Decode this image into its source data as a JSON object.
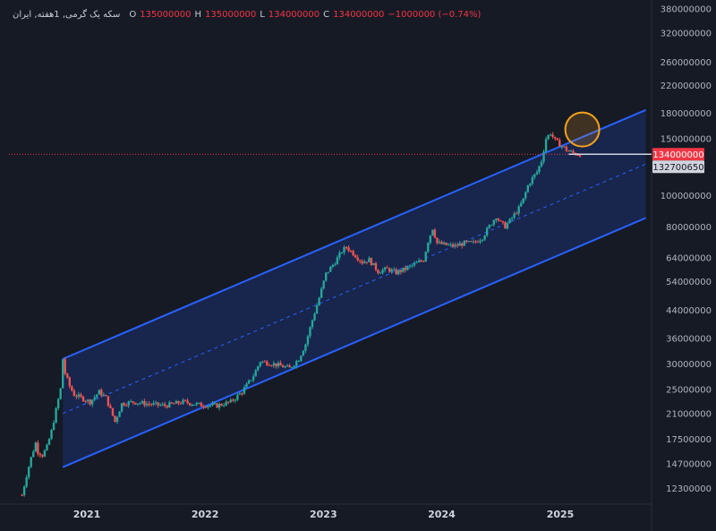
{
  "legend": {
    "symbol": "سکه یک گرمی, 1هفته, ایران",
    "o_label": "O",
    "o_value": "135000000",
    "h_label": "H",
    "h_value": "135000000",
    "l_label": "L",
    "l_value": "134000000",
    "c_label": "C",
    "c_value": "134000000",
    "change": "−1000000 (−0.74%)"
  },
  "colors": {
    "background": "#161a25",
    "up": "#26a69a",
    "down": "#ef5350",
    "channel_line": "#2962ff",
    "channel_fill": "#1c2f6e",
    "highlight_circle": "#f7a21b",
    "last_price_bg": "#f23645",
    "ref_price_bg": "#d1d4dc"
  },
  "chart_data": {
    "type": "candlestick",
    "scale": "log",
    "y_ticks": [
      "380000000",
      "320000000",
      "260000000",
      "220000000",
      "180000000",
      "150000000",
      "100000000",
      "80000000",
      "64000000",
      "54000000",
      "44000000",
      "36000000",
      "30000000",
      "25000000",
      "21000000",
      "17500000",
      "14700000",
      "12300000"
    ],
    "x_ticks": [
      "2021",
      "2022",
      "2023",
      "2024",
      "2025"
    ],
    "ylim": [
      11000000,
      400000000
    ],
    "last_price": "134000000",
    "ref_price": "132700650",
    "channel": {
      "upper": [
        [
          "2020-10-19",
          31000000
        ],
        [
          "2025-09-22",
          184000000
        ]
      ],
      "middle": [
        [
          "2020-10-19",
          21000000
        ],
        [
          "2025-09-22",
          125000000
        ]
      ],
      "lower": [
        [
          "2020-10-19",
          14300000
        ],
        [
          "2025-09-22",
          85000000
        ]
      ]
    },
    "highlight": {
      "date": "2025-03-10",
      "value": 160000000
    },
    "close_path": [
      [
        "2020-06-15",
        11700000
      ],
      [
        "2020-06-29",
        13500000
      ],
      [
        "2020-07-13",
        15300000
      ],
      [
        "2020-07-27",
        17000000
      ],
      [
        "2020-08-03",
        16000000
      ],
      [
        "2020-08-17",
        15600000
      ],
      [
        "2020-08-31",
        16500000
      ],
      [
        "2020-09-14",
        18500000
      ],
      [
        "2020-09-28",
        21500000
      ],
      [
        "2020-10-12",
        25000000
      ],
      [
        "2020-10-19",
        31000000
      ],
      [
        "2020-10-26",
        28000000
      ],
      [
        "2020-11-09",
        25500000
      ],
      [
        "2020-11-23",
        24000000
      ],
      [
        "2020-12-14",
        23500000
      ],
      [
        "2021-01-11",
        22800000
      ],
      [
        "2021-02-08",
        24500000
      ],
      [
        "2021-03-01",
        23500000
      ],
      [
        "2021-03-29",
        19800000
      ],
      [
        "2021-04-19",
        22500000
      ],
      [
        "2021-05-24",
        22800000
      ],
      [
        "2021-07-05",
        22500000
      ],
      [
        "2021-08-30",
        22200000
      ],
      [
        "2021-10-25",
        22800000
      ],
      [
        "2021-12-20",
        22300000
      ],
      [
        "2022-02-07",
        22200000
      ],
      [
        "2022-03-21",
        22800000
      ],
      [
        "2022-04-25",
        24500000
      ],
      [
        "2022-05-30",
        27500000
      ],
      [
        "2022-06-20",
        30500000
      ],
      [
        "2022-07-25",
        30000000
      ],
      [
        "2022-08-22",
        29500000
      ],
      [
        "2022-09-19",
        29000000
      ],
      [
        "2022-10-17",
        31000000
      ],
      [
        "2022-11-07",
        34500000
      ],
      [
        "2022-11-28",
        41000000
      ],
      [
        "2022-12-19",
        48000000
      ],
      [
        "2023-01-09",
        57000000
      ],
      [
        "2023-02-06",
        62000000
      ],
      [
        "2023-02-27",
        67000000
      ],
      [
        "2023-03-13",
        69000000
      ],
      [
        "2023-04-10",
        65000000
      ],
      [
        "2023-05-01",
        62000000
      ],
      [
        "2023-05-22",
        63000000
      ],
      [
        "2023-06-19",
        58000000
      ],
      [
        "2023-07-17",
        59000000
      ],
      [
        "2023-08-14",
        57500000
      ],
      [
        "2023-09-11",
        59000000
      ],
      [
        "2023-10-09",
        61000000
      ],
      [
        "2023-11-06",
        63000000
      ],
      [
        "2023-11-20",
        72000000
      ],
      [
        "2023-12-04",
        79000000
      ],
      [
        "2023-12-18",
        71000000
      ],
      [
        "2024-01-15",
        70000000
      ],
      [
        "2024-02-12",
        69500000
      ],
      [
        "2024-03-11",
        71000000
      ],
      [
        "2024-04-08",
        71000000
      ],
      [
        "2024-05-06",
        74000000
      ],
      [
        "2024-05-27",
        80000000
      ],
      [
        "2024-06-17",
        86000000
      ],
      [
        "2024-07-01",
        82000000
      ],
      [
        "2024-07-15",
        80000000
      ],
      [
        "2024-08-05",
        85000000
      ],
      [
        "2024-08-26",
        91000000
      ],
      [
        "2024-09-09",
        97000000
      ],
      [
        "2024-09-23",
        107000000
      ],
      [
        "2024-10-07",
        113000000
      ],
      [
        "2024-10-21",
        118000000
      ],
      [
        "2024-11-04",
        128000000
      ],
      [
        "2024-11-18",
        150000000
      ],
      [
        "2024-12-02",
        156000000
      ],
      [
        "2024-12-16",
        148000000
      ],
      [
        "2024-12-30",
        144000000
      ],
      [
        "2025-01-13",
        140000000
      ],
      [
        "2025-01-27",
        137000000
      ],
      [
        "2025-02-10",
        135000000
      ],
      [
        "2025-03-03",
        134000000
      ]
    ]
  }
}
